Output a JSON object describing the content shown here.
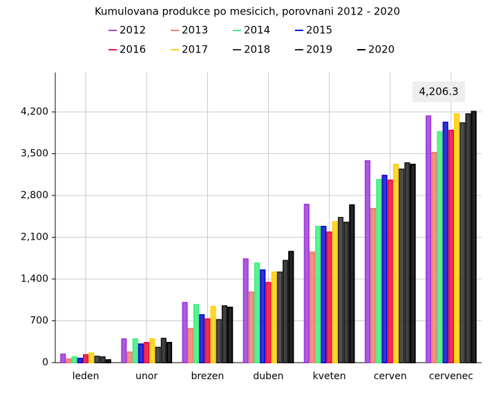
{
  "chart_data": {
    "type": "bar",
    "title": "Kumulovana produkce po mesicich, porovnani 2012 - 2020",
    "categories": [
      "leden",
      "unor",
      "brezen",
      "duben",
      "kveten",
      "cerven",
      "cervenec"
    ],
    "series": [
      {
        "name": "2012",
        "color": "#a040d8",
        "values": [
          140,
          395,
          1005,
          1735,
          2650,
          3380,
          4130
        ]
      },
      {
        "name": "2013",
        "color": "#f08070",
        "values": [
          60,
          175,
          570,
          1180,
          1850,
          2580,
          3520
        ]
      },
      {
        "name": "2014",
        "color": "#40f080",
        "values": [
          95,
          395,
          970,
          1665,
          2280,
          3065,
          3865
        ]
      },
      {
        "name": "2015",
        "color": "#1010d0",
        "values": [
          70,
          310,
          800,
          1550,
          2280,
          3135,
          4025
        ]
      },
      {
        "name": "2016",
        "color": "#f01040",
        "values": [
          130,
          335,
          730,
          1340,
          2185,
          3055,
          3890
        ]
      },
      {
        "name": "2017",
        "color": "#ffd010",
        "values": [
          160,
          395,
          940,
          1515,
          2360,
          3320,
          4165
        ]
      },
      {
        "name": "2018",
        "color": "#303030",
        "values": [
          105,
          255,
          720,
          1515,
          2430,
          3240,
          4015
        ]
      },
      {
        "name": "2019",
        "color": "#202020",
        "values": [
          95,
          405,
          950,
          1710,
          2350,
          3345,
          4165
        ]
      },
      {
        "name": "2020",
        "color": "#000000",
        "values": [
          45,
          335,
          925,
          1860,
          2640,
          3320,
          4206.3
        ]
      }
    ],
    "annotation": "4,206.3",
    "ylim": [
      0,
      4860
    ],
    "yticks": [
      0,
      700,
      {
        "value": 1400,
        "label": "1,400"
      },
      {
        "value": 2100,
        "label": "2,100"
      },
      {
        "value": 2800,
        "label": "2,800"
      },
      {
        "value": 3500,
        "label": "3,500"
      },
      {
        "value": 4200,
        "label": "4,200"
      }
    ],
    "grid": true
  }
}
